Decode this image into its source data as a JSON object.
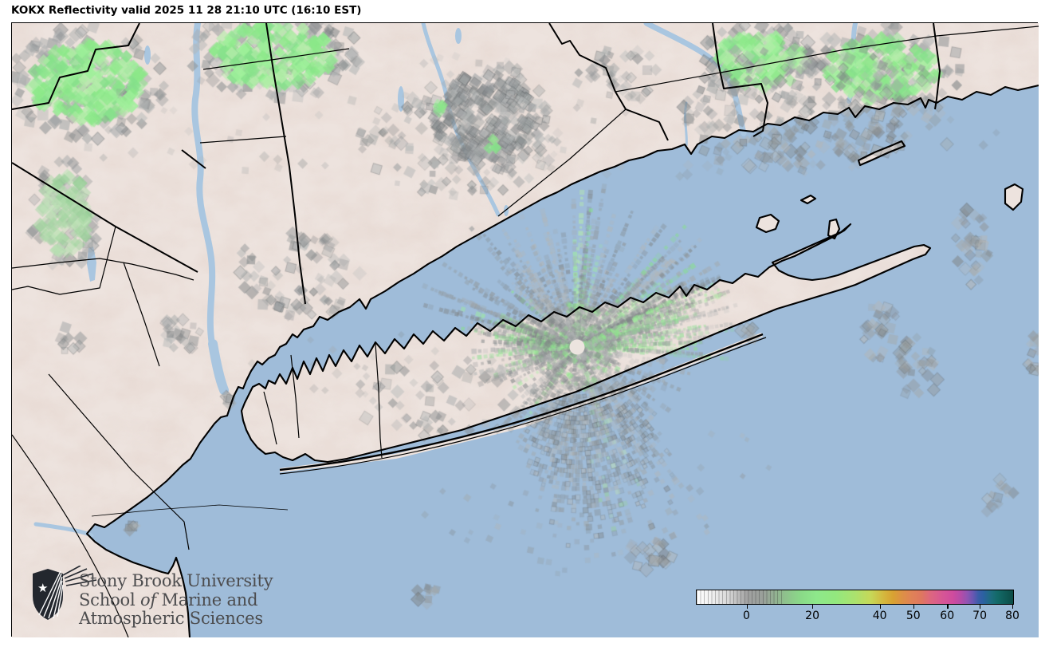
{
  "title": "KOKX Reflectivity valid 2025 11 28 21:10 UTC (16:10 EST)",
  "radar": {
    "station": "KOKX",
    "product": "Reflectivity",
    "valid_utc": "2025 11 28 21:10 UTC",
    "valid_local": "16:10 EST"
  },
  "branding": {
    "line1": "Stony Brook University",
    "line2_a": "School",
    "line2_b": " of",
    "line2_c": " Marine and",
    "line3": "Atmospheric Sciences"
  },
  "colorbar": {
    "ticks": [
      {
        "label": "0",
        "pct": 16.0
      },
      {
        "label": "20",
        "pct": 36.8
      },
      {
        "label": "40",
        "pct": 58.1
      },
      {
        "label": "50",
        "pct": 68.7
      },
      {
        "label": "60",
        "pct": 79.4
      },
      {
        "label": "70",
        "pct": 89.7
      },
      {
        "label": "80",
        "pct": 100.0
      }
    ]
  },
  "colors": {
    "water": "#9fbcd9",
    "land": "#ede3de",
    "echo_gray": "#909597",
    "echo_green": "#8ce889",
    "boundary": "#000000"
  }
}
